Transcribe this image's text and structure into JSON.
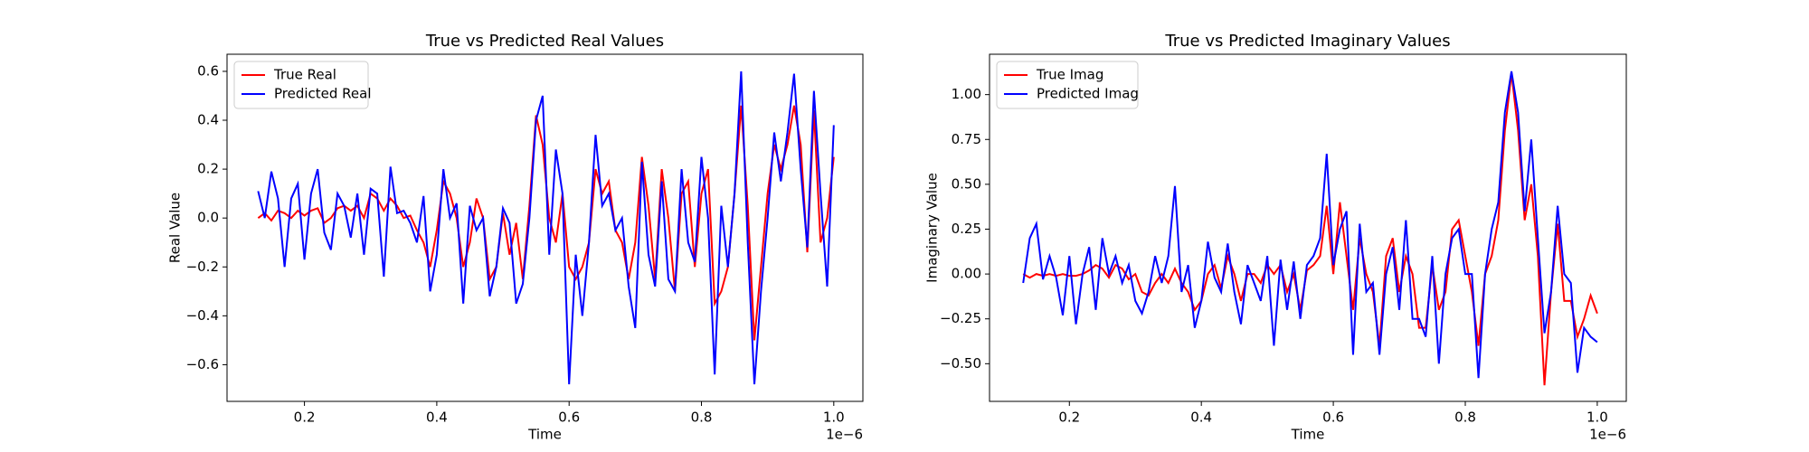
{
  "chart_data": [
    {
      "type": "line",
      "title": "True vs Predicted Real Values",
      "xlabel": "Time",
      "ylabel": "Real Value",
      "x_offset": "1e−6",
      "x": [
        0.13,
        0.14,
        0.15,
        0.16,
        0.17,
        0.18,
        0.19,
        0.2,
        0.21,
        0.22,
        0.23,
        0.24,
        0.25,
        0.26,
        0.27,
        0.28,
        0.29,
        0.3,
        0.31,
        0.32,
        0.33,
        0.34,
        0.35,
        0.36,
        0.37,
        0.38,
        0.39,
        0.4,
        0.41,
        0.42,
        0.43,
        0.44,
        0.45,
        0.46,
        0.47,
        0.48,
        0.49,
        0.5,
        0.51,
        0.52,
        0.53,
        0.54,
        0.55,
        0.56,
        0.57,
        0.58,
        0.59,
        0.6,
        0.61,
        0.62,
        0.63,
        0.64,
        0.65,
        0.66,
        0.67,
        0.68,
        0.69,
        0.7,
        0.71,
        0.72,
        0.73,
        0.74,
        0.75,
        0.76,
        0.77,
        0.78,
        0.79,
        0.8,
        0.81,
        0.82,
        0.83,
        0.84,
        0.85,
        0.86,
        0.87,
        0.88,
        0.89,
        0.9,
        0.91,
        0.92,
        0.93,
        0.94,
        0.95,
        0.96,
        0.97,
        0.98,
        0.99,
        1.0
      ],
      "series": [
        {
          "name": "True Real",
          "color": "red",
          "values": [
            0.0,
            0.02,
            -0.01,
            0.03,
            0.02,
            0.0,
            0.03,
            0.01,
            0.03,
            0.04,
            -0.02,
            0.0,
            0.04,
            0.05,
            0.03,
            0.05,
            0.0,
            0.1,
            0.08,
            0.03,
            0.08,
            0.05,
            0.0,
            0.01,
            -0.05,
            -0.1,
            -0.2,
            -0.05,
            0.15,
            0.1,
            0.0,
            -0.2,
            -0.1,
            0.08,
            0.0,
            -0.25,
            -0.2,
            0.02,
            -0.15,
            -0.02,
            -0.25,
            0.05,
            0.42,
            0.3,
            0.0,
            -0.1,
            0.1,
            -0.2,
            -0.25,
            -0.2,
            -0.1,
            0.2,
            0.1,
            0.15,
            -0.05,
            -0.1,
            -0.25,
            -0.1,
            0.25,
            0.05,
            -0.25,
            0.2,
            0.0,
            -0.3,
            0.1,
            0.15,
            -0.2,
            0.1,
            0.2,
            -0.35,
            -0.3,
            -0.2,
            0.1,
            0.46,
            0.05,
            -0.5,
            -0.2,
            0.1,
            0.3,
            0.2,
            0.3,
            0.46,
            0.3,
            -0.14,
            0.44,
            -0.1,
            0.0,
            0.25
          ]
        },
        {
          "name": "Predicted Real",
          "color": "blue",
          "values": [
            0.11,
            0.0,
            0.19,
            0.08,
            -0.2,
            0.08,
            0.14,
            -0.17,
            0.1,
            0.2,
            -0.06,
            -0.13,
            0.1,
            0.05,
            -0.08,
            0.1,
            -0.15,
            0.12,
            0.1,
            -0.24,
            0.21,
            0.02,
            0.03,
            -0.02,
            -0.1,
            0.09,
            -0.3,
            -0.15,
            0.2,
            0.0,
            0.06,
            -0.35,
            0.05,
            -0.05,
            0.0,
            -0.32,
            -0.2,
            0.04,
            -0.02,
            -0.35,
            -0.27,
            0.0,
            0.4,
            0.5,
            -0.15,
            0.28,
            0.1,
            -0.68,
            -0.15,
            -0.4,
            -0.1,
            0.34,
            0.05,
            0.1,
            -0.05,
            0.0,
            -0.28,
            -0.45,
            0.23,
            -0.15,
            -0.28,
            0.15,
            -0.25,
            -0.3,
            0.2,
            -0.1,
            -0.18,
            0.25,
            0.0,
            -0.64,
            0.05,
            -0.2,
            0.1,
            0.6,
            -0.1,
            -0.68,
            -0.3,
            0.0,
            0.35,
            0.15,
            0.35,
            0.59,
            0.2,
            -0.12,
            0.52,
            0.1,
            -0.28,
            0.38
          ]
        }
      ],
      "xlim": [
        0.083,
        1.044
      ],
      "ylim": [
        -0.75,
        0.67
      ],
      "xticks": [
        0.2,
        0.4,
        0.6,
        0.8,
        {
          "value": 1,
          "label": "1.0"
        }
      ],
      "yticks": [
        {
          "value": -0.6,
          "label": "−0.6"
        },
        {
          "value": -0.4,
          "label": "−0.4"
        },
        {
          "value": -0.2,
          "label": "−0.2"
        },
        {
          "value": 0,
          "label": "0.0"
        },
        0.2,
        0.4,
        0.6
      ],
      "legend": "upper left",
      "grid": false
    },
    {
      "type": "line",
      "title": "True vs Predicted Imaginary Values",
      "xlabel": "Time",
      "ylabel": "Imaginary Value",
      "x_offset": "1e−6",
      "x": [
        0.13,
        0.14,
        0.15,
        0.16,
        0.17,
        0.18,
        0.19,
        0.2,
        0.21,
        0.22,
        0.23,
        0.24,
        0.25,
        0.26,
        0.27,
        0.28,
        0.29,
        0.3,
        0.31,
        0.32,
        0.33,
        0.34,
        0.35,
        0.36,
        0.37,
        0.38,
        0.39,
        0.4,
        0.41,
        0.42,
        0.43,
        0.44,
        0.45,
        0.46,
        0.47,
        0.48,
        0.49,
        0.5,
        0.51,
        0.52,
        0.53,
        0.54,
        0.55,
        0.56,
        0.57,
        0.58,
        0.59,
        0.6,
        0.61,
        0.62,
        0.63,
        0.64,
        0.65,
        0.66,
        0.67,
        0.68,
        0.69,
        0.7,
        0.71,
        0.72,
        0.73,
        0.74,
        0.75,
        0.76,
        0.77,
        0.78,
        0.79,
        0.8,
        0.81,
        0.82,
        0.83,
        0.84,
        0.85,
        0.86,
        0.87,
        0.88,
        0.89,
        0.9,
        0.91,
        0.92,
        0.93,
        0.94,
        0.95,
        0.96,
        0.97,
        0.98,
        0.99,
        1.0
      ],
      "series": [
        {
          "name": "True Imag",
          "color": "red",
          "values": [
            0.0,
            -0.02,
            0.0,
            -0.01,
            0.0,
            -0.01,
            0.0,
            -0.01,
            -0.01,
            0.0,
            0.02,
            0.05,
            0.03,
            -0.02,
            0.05,
            0.03,
            -0.03,
            0.0,
            -0.1,
            -0.12,
            -0.05,
            0.0,
            -0.05,
            0.03,
            -0.05,
            -0.1,
            -0.2,
            -0.15,
            0.0,
            0.05,
            -0.08,
            0.1,
            0.0,
            -0.15,
            0.0,
            0.0,
            -0.05,
            0.05,
            0.0,
            0.05,
            -0.1,
            0.0,
            -0.2,
            0.02,
            0.05,
            0.1,
            0.38,
            0.0,
            0.4,
            0.1,
            -0.2,
            0.2,
            0.0,
            -0.1,
            -0.4,
            0.1,
            0.2,
            -0.1,
            0.1,
            0.0,
            -0.3,
            -0.3,
            0.05,
            -0.2,
            -0.1,
            0.25,
            0.3,
            0.1,
            -0.1,
            -0.4,
            0.0,
            0.1,
            0.3,
            0.8,
            1.12,
            0.8,
            0.3,
            0.5,
            0.1,
            -0.62,
            -0.1,
            0.28,
            -0.15,
            -0.15,
            -0.35,
            -0.25,
            -0.12,
            -0.22
          ]
        },
        {
          "name": "Predicted Imag",
          "color": "blue",
          "values": [
            -0.05,
            0.2,
            0.28,
            -0.03,
            0.1,
            -0.02,
            -0.23,
            0.1,
            -0.28,
            0.0,
            0.15,
            -0.2,
            0.2,
            0.0,
            0.1,
            -0.05,
            0.05,
            -0.15,
            -0.22,
            -0.1,
            0.1,
            -0.05,
            0.1,
            0.49,
            -0.1,
            0.05,
            -0.3,
            -0.15,
            0.18,
            -0.02,
            -0.1,
            0.17,
            -0.1,
            -0.28,
            0.05,
            -0.05,
            -0.15,
            0.1,
            -0.4,
            0.08,
            -0.2,
            0.07,
            -0.25,
            0.05,
            0.1,
            0.2,
            0.67,
            0.05,
            0.25,
            0.35,
            -0.45,
            0.28,
            -0.1,
            -0.05,
            -0.45,
            0.0,
            0.15,
            -0.2,
            0.3,
            -0.25,
            -0.25,
            -0.35,
            0.1,
            -0.5,
            0.0,
            0.2,
            0.25,
            0.0,
            0.0,
            -0.58,
            0.0,
            0.25,
            0.4,
            0.9,
            1.13,
            0.9,
            0.35,
            0.75,
            0.2,
            -0.33,
            -0.1,
            0.38,
            0.0,
            -0.05,
            -0.55,
            -0.3,
            -0.35,
            -0.38
          ]
        }
      ],
      "xlim": [
        0.079,
        1.044
      ],
      "ylim": [
        -0.71,
        1.225
      ],
      "xticks": [
        0.2,
        0.4,
        0.6,
        0.8,
        {
          "value": 1,
          "label": "1.0"
        }
      ],
      "yticks": [
        {
          "value": -0.5,
          "label": "−0.50"
        },
        {
          "value": -0.25,
          "label": "−0.25"
        },
        {
          "value": 0,
          "label": "0.00"
        },
        {
          "value": 0.25,
          "label": "0.25"
        },
        {
          "value": 0.5,
          "label": "0.50"
        },
        {
          "value": 0.75,
          "label": "0.75"
        },
        {
          "value": 1,
          "label": "1.00"
        }
      ],
      "legend": "upper left",
      "grid": false
    }
  ]
}
